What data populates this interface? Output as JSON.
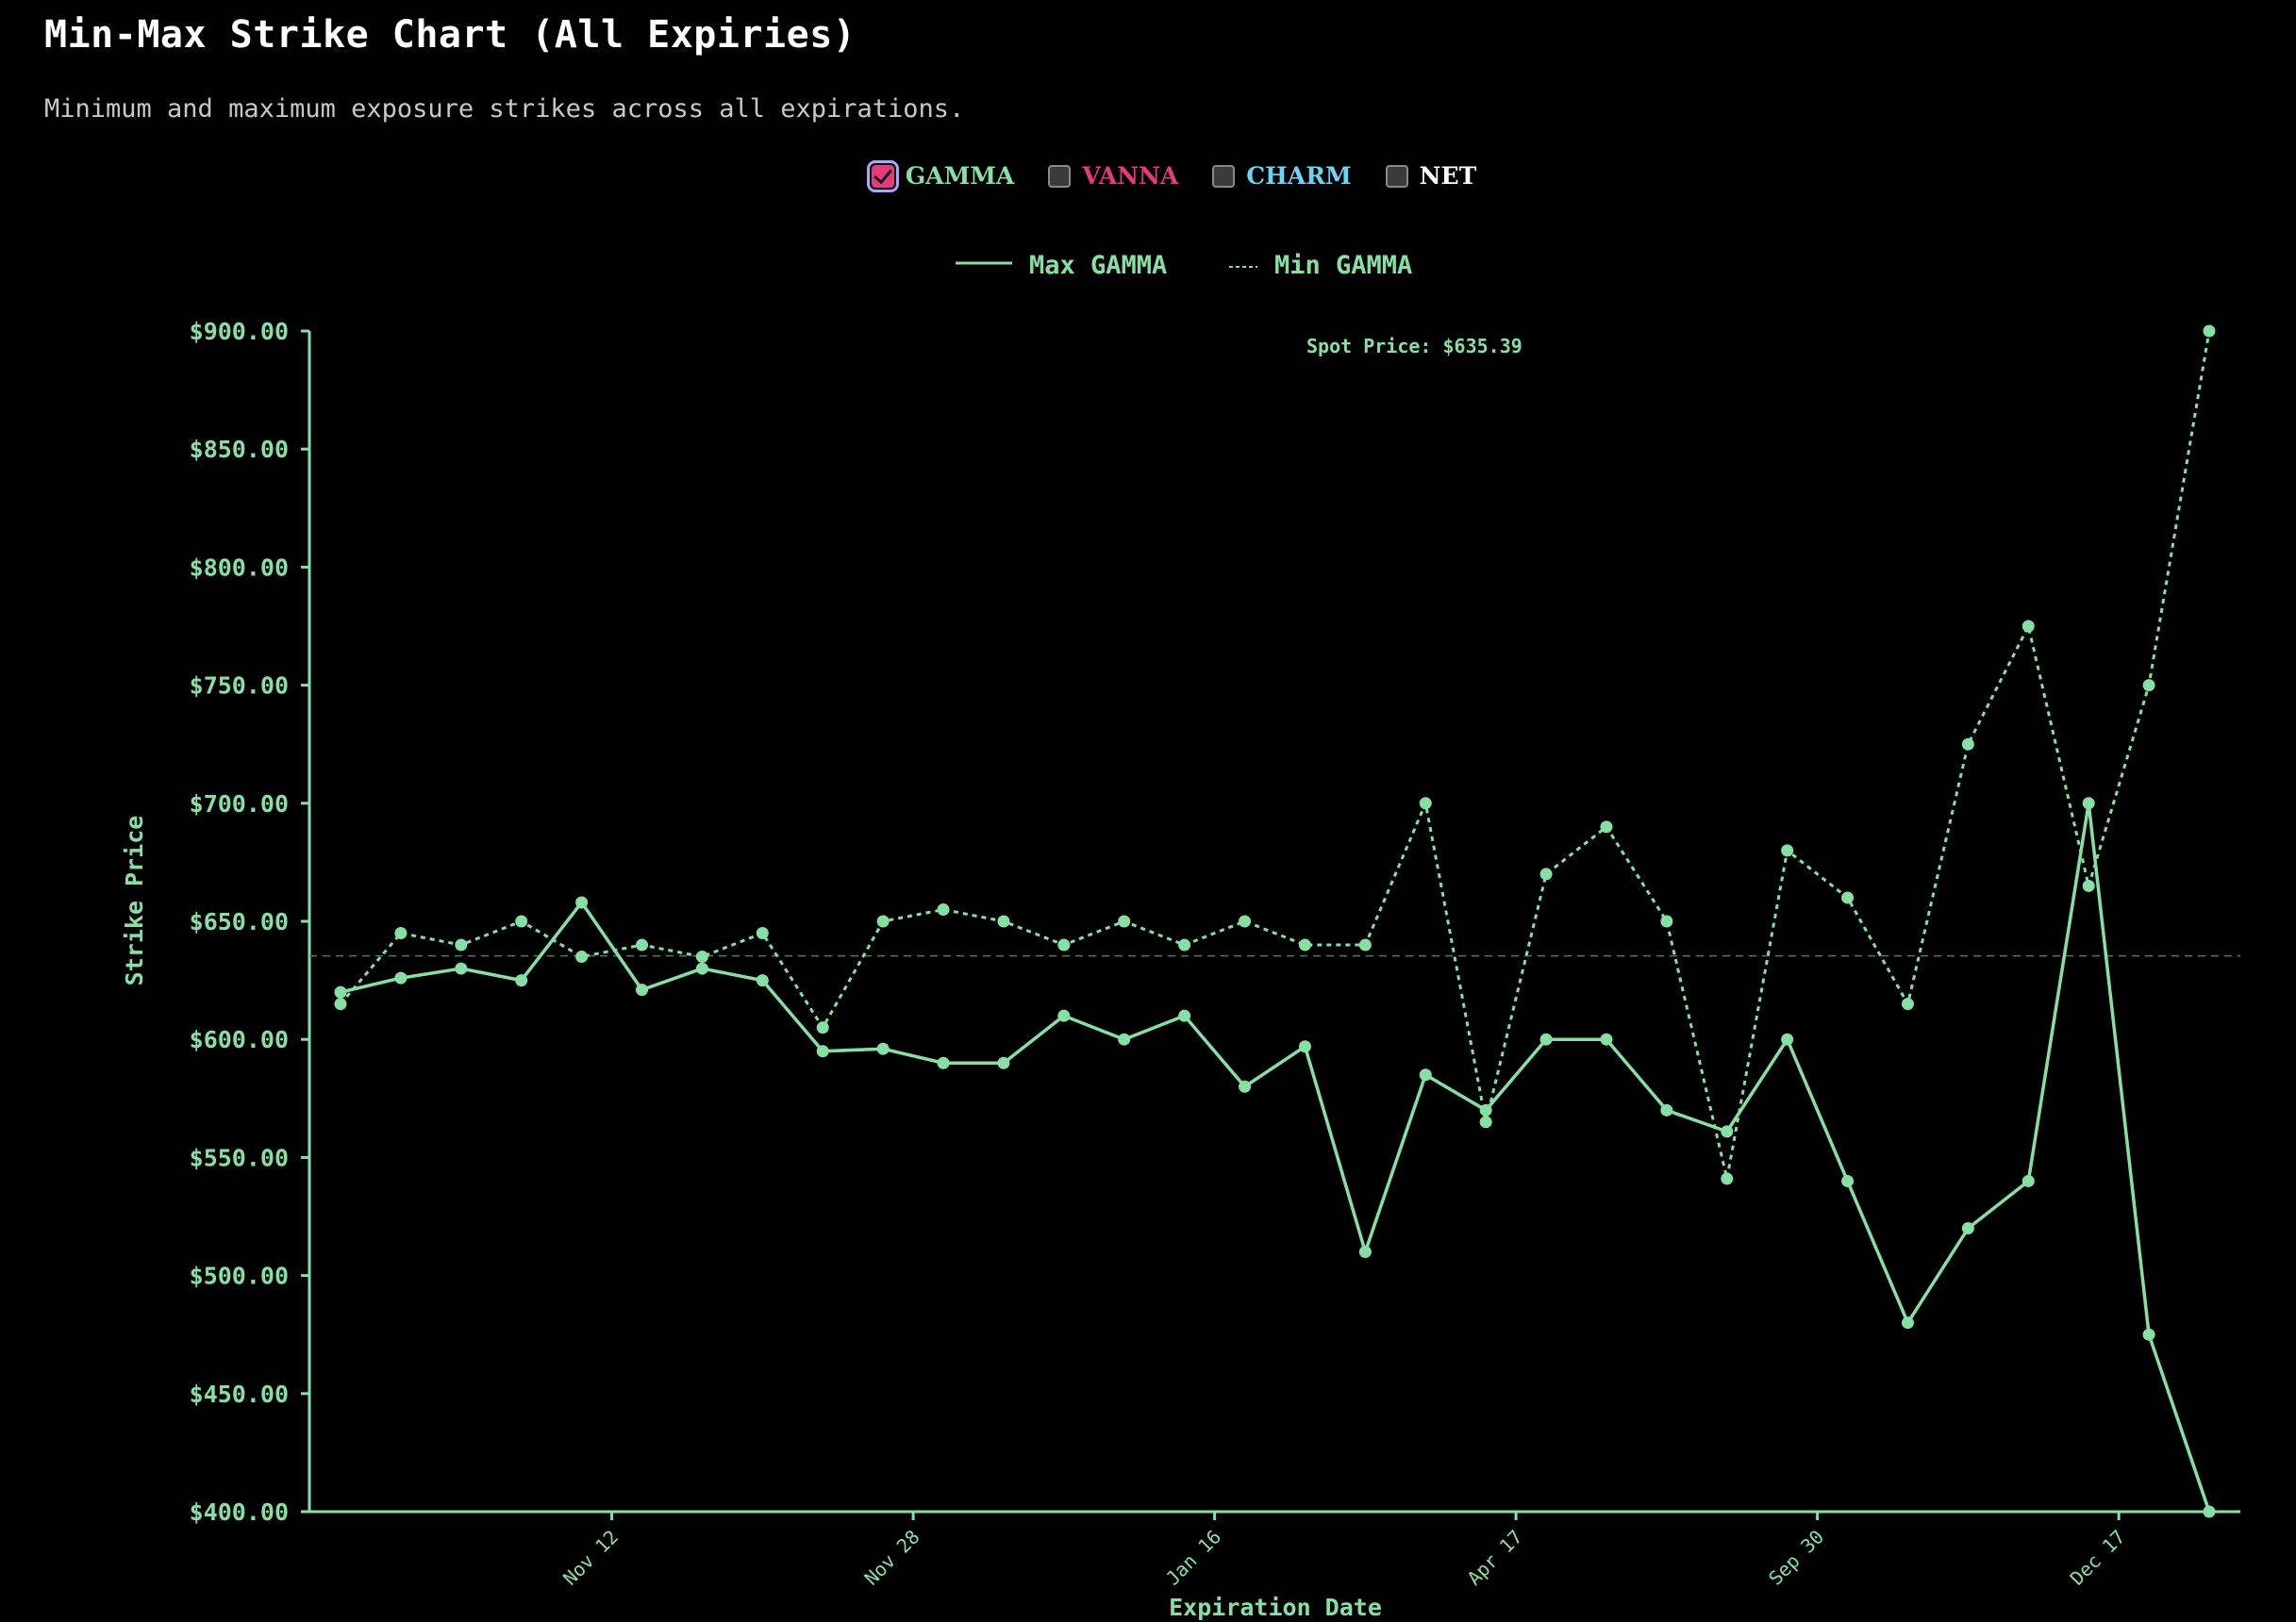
{
  "header": {
    "title": "Min-Max Strike Chart (All Expiries)",
    "subtitle": "Minimum and maximum exposure strikes across all expirations."
  },
  "toggles": [
    {
      "label": "GAMMA",
      "checked": true,
      "color": "#86e0a5"
    },
    {
      "label": "VANNA",
      "checked": false,
      "color": "#e6397e"
    },
    {
      "label": "CHARM",
      "checked": false,
      "color": "#6fd3f5"
    },
    {
      "label": "NET",
      "checked": false,
      "color": "#ffffff"
    }
  ],
  "colors": {
    "series": "#86e0a5",
    "background": "#000000",
    "spot_line": "#5a8a6a"
  },
  "chart_data": {
    "type": "line",
    "xlabel": "Expiration Date",
    "ylabel": "Strike Price",
    "ylim": [
      400,
      900
    ],
    "yticks": [
      "$400.00",
      "$450.00",
      "$500.00",
      "$550.00",
      "$600.00",
      "$650.00",
      "$700.00",
      "$750.00",
      "$800.00",
      "$850.00",
      "$900.00"
    ],
    "ytick_values": [
      400,
      450,
      500,
      550,
      600,
      650,
      700,
      750,
      800,
      850,
      900
    ],
    "xticks": [
      {
        "label": "Nov 12",
        "after_index": 4.5
      },
      {
        "label": "Nov 28",
        "after_index": 9.5
      },
      {
        "label": "Jan 16",
        "after_index": 14.5
      },
      {
        "label": "Apr 17",
        "after_index": 19.5
      },
      {
        "label": "Sep 30",
        "after_index": 24.5
      },
      {
        "label": "Dec 17",
        "after_index": 29.5
      }
    ],
    "spot_price": 635.39,
    "spot_label": "Spot Price: $635.39",
    "legend": {
      "position": "top-center"
    },
    "series": [
      {
        "name": "Max GAMMA",
        "style": "solid",
        "values": [
          620,
          626,
          630,
          625,
          658,
          621,
          630,
          625,
          595,
          596,
          590,
          590,
          610,
          600,
          610,
          580,
          597,
          510,
          585,
          570,
          600,
          600,
          570,
          561,
          600,
          540,
          480,
          520,
          540,
          700,
          475,
          400
        ]
      },
      {
        "name": "Min GAMMA",
        "style": "dashed",
        "values": [
          615,
          645,
          640,
          650,
          635,
          640,
          635,
          645,
          605,
          650,
          655,
          650,
          640,
          650,
          640,
          650,
          640,
          640,
          700,
          565,
          670,
          690,
          650,
          541,
          680,
          660,
          615,
          725,
          775,
          665,
          750,
          900
        ]
      }
    ]
  }
}
